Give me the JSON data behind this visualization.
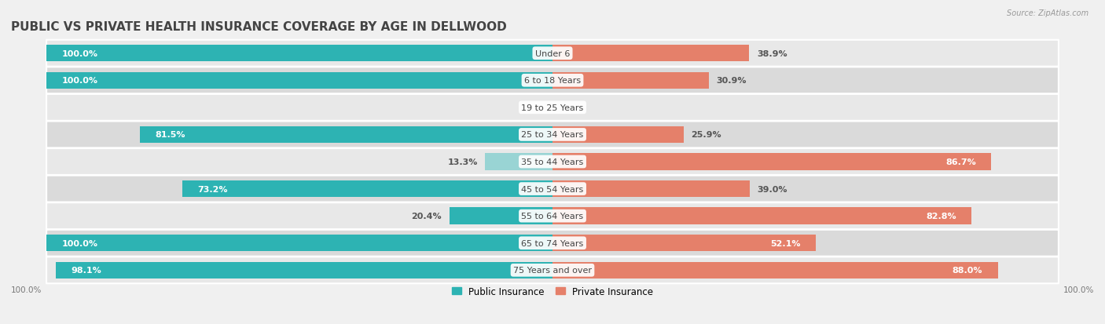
{
  "title": "PUBLIC VS PRIVATE HEALTH INSURANCE COVERAGE BY AGE IN DELLWOOD",
  "source": "Source: ZipAtlas.com",
  "categories": [
    "Under 6",
    "6 to 18 Years",
    "19 to 25 Years",
    "25 to 34 Years",
    "35 to 44 Years",
    "45 to 54 Years",
    "55 to 64 Years",
    "65 to 74 Years",
    "75 Years and over"
  ],
  "public_values": [
    100.0,
    100.0,
    0.0,
    81.5,
    13.3,
    73.2,
    20.4,
    100.0,
    98.1
  ],
  "private_values": [
    38.9,
    30.9,
    0.0,
    25.9,
    86.7,
    39.0,
    82.8,
    52.1,
    88.0
  ],
  "public_color": "#2db3b3",
  "private_color": "#e5806a",
  "public_color_light": "#99d4d4",
  "private_color_light": "#f0b5a5",
  "bg_color": "#f0f0f0",
  "row_light": "#e8e8e8",
  "row_dark": "#dadada",
  "title_fontsize": 11,
  "label_fontsize": 8,
  "value_fontsize": 8,
  "bar_height": 0.62,
  "max_value": 100.0,
  "legend_public": "Public Insurance",
  "legend_private": "Private Insurance"
}
